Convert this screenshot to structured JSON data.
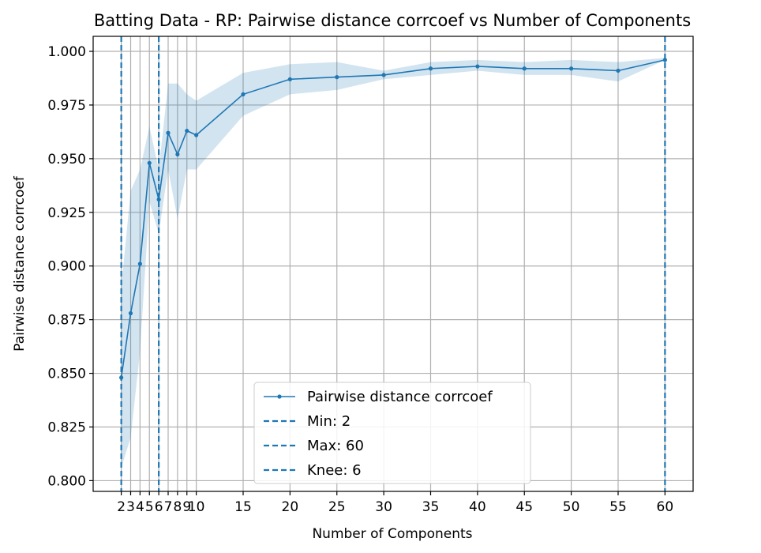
{
  "chart_data": {
    "type": "line",
    "title": "Batting Data - RP: Pairwise distance corrcoef vs Number of Components",
    "xlabel": "Number of Components",
    "ylabel": "Pairwise distance corrcoef",
    "xlim": [
      -1,
      63
    ],
    "ylim": [
      0.795,
      1.007
    ],
    "x_ticks": [
      2,
      3,
      4,
      5,
      6,
      7,
      8,
      9,
      10,
      15,
      20,
      25,
      30,
      35,
      40,
      45,
      50,
      55,
      60
    ],
    "x_tick_labels": [
      "2",
      "3",
      "4",
      "5",
      "6",
      "7",
      "8",
      "9",
      "10",
      "15",
      "20",
      "25",
      "30",
      "35",
      "40",
      "45",
      "50",
      "55",
      "60"
    ],
    "y_ticks": [
      0.8,
      0.825,
      0.85,
      0.875,
      0.9,
      0.925,
      0.95,
      0.975,
      1.0
    ],
    "y_tick_labels": [
      "0.800",
      "0.825",
      "0.850",
      "0.875",
      "0.900",
      "0.925",
      "0.950",
      "0.975",
      "1.000"
    ],
    "grid": true,
    "legend_position": "lower-center",
    "color": "#1f77b4",
    "band_color": "#1f77b4",
    "series": [
      {
        "name": "Pairwise distance corrcoef",
        "x": [
          2,
          3,
          4,
          5,
          6,
          7,
          8,
          9,
          10,
          15,
          20,
          25,
          30,
          35,
          40,
          45,
          50,
          55,
          60
        ],
        "y": [
          0.848,
          0.878,
          0.901,
          0.948,
          0.931,
          0.962,
          0.952,
          0.963,
          0.961,
          0.98,
          0.987,
          0.988,
          0.989,
          0.992,
          0.993,
          0.992,
          0.992,
          0.991,
          0.996
        ],
        "lower": [
          0.806,
          0.82,
          0.86,
          0.93,
          0.915,
          0.945,
          0.922,
          0.945,
          0.945,
          0.97,
          0.98,
          0.982,
          0.987,
          0.989,
          0.991,
          0.989,
          0.989,
          0.986,
          0.996
        ],
        "upper": [
          0.89,
          0.935,
          0.945,
          0.965,
          0.945,
          0.985,
          0.985,
          0.98,
          0.977,
          0.99,
          0.994,
          0.995,
          0.991,
          0.995,
          0.996,
          0.995,
          0.996,
          0.995,
          0.997
        ]
      }
    ],
    "vlines": [
      {
        "name": "Min: 2",
        "x": 2
      },
      {
        "name": "Max: 60",
        "x": 60
      },
      {
        "name": "Knee: 6",
        "x": 6
      }
    ]
  }
}
